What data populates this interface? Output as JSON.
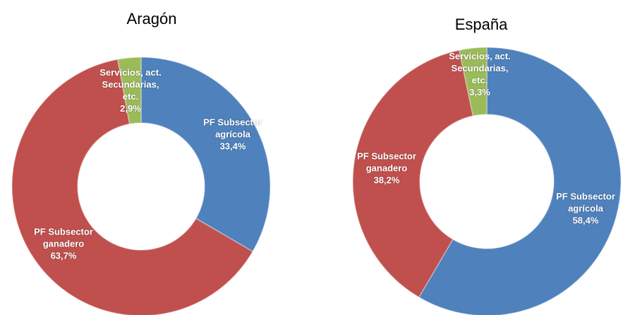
{
  "chart_data": [
    {
      "type": "pie",
      "title": "Aragón",
      "categories": [
        "PF Subsector agrícola",
        "PF Subsector ganadero",
        "Servicios, act. Secundarias, etc."
      ],
      "values": [
        33.4,
        63.7,
        2.9
      ],
      "value_labels": [
        "33,4%",
        "63,7%",
        "2,9%"
      ],
      "colors": [
        "#4f81bd",
        "#c0504d",
        "#9bbb59"
      ]
    },
    {
      "type": "pie",
      "title": "España",
      "categories": [
        "PF Subsector agrícola",
        "PF Subsector ganadero",
        "Servicios, act. Secundarias, etc."
      ],
      "values": [
        58.4,
        38.2,
        3.3
      ],
      "value_labels": [
        "58,4%",
        "38,2%",
        "3,3%"
      ],
      "colors": [
        "#4f81bd",
        "#c0504d",
        "#9bbb59"
      ]
    }
  ]
}
